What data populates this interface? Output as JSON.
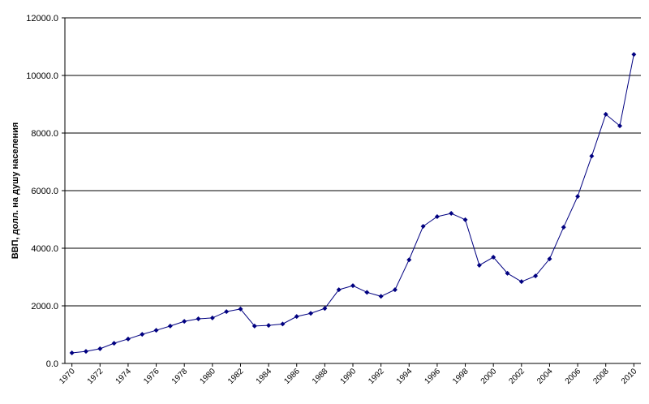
{
  "chart_data": {
    "type": "line",
    "y_label": "ВВП, долл. на душу населения",
    "x": [
      1970,
      1971,
      1972,
      1973,
      1974,
      1975,
      1976,
      1977,
      1978,
      1979,
      1980,
      1981,
      1982,
      1983,
      1984,
      1985,
      1986,
      1987,
      1988,
      1989,
      1990,
      1991,
      1992,
      1993,
      1994,
      1995,
      1996,
      1997,
      1998,
      1999,
      2000,
      2001,
      2002,
      2003,
      2004,
      2005,
      2006,
      2007,
      2008,
      2009,
      2010
    ],
    "series": [
      {
        "color": "#000080",
        "values": [
          366,
          420,
          510,
          700,
          850,
          1010,
          1150,
          1300,
          1460,
          1550,
          1580,
          1800,
          1890,
          1300,
          1320,
          1370,
          1630,
          1740,
          1910,
          2560,
          2700,
          2470,
          2330,
          2560,
          3600,
          4760,
          5100,
          5210,
          4990,
          3410,
          3690,
          3130,
          2840,
          3040,
          3630,
          4730,
          5800,
          7200,
          8650,
          8250,
          10730
        ]
      }
    ],
    "xlim": [
      1969.5,
      2010.5
    ],
    "xticks": [
      1970,
      1972,
      1974,
      1976,
      1978,
      1980,
      1982,
      1984,
      1986,
      1988,
      1990,
      1992,
      1994,
      1996,
      1998,
      2000,
      2002,
      2004,
      2006,
      2008,
      2010
    ],
    "ylim": [
      0,
      12000
    ],
    "yticks": [
      {
        "value": 0,
        "label": "0.0"
      },
      {
        "value": 2000,
        "label": "2000.0"
      },
      {
        "value": 4000,
        "label": "4000.0"
      },
      {
        "value": 6000,
        "label": "6000.0"
      },
      {
        "value": 8000,
        "label": "8000.0"
      },
      {
        "value": 10000,
        "label": "10000.0"
      },
      {
        "value": 12000,
        "label": "12000.0"
      }
    ],
    "grid": true
  }
}
